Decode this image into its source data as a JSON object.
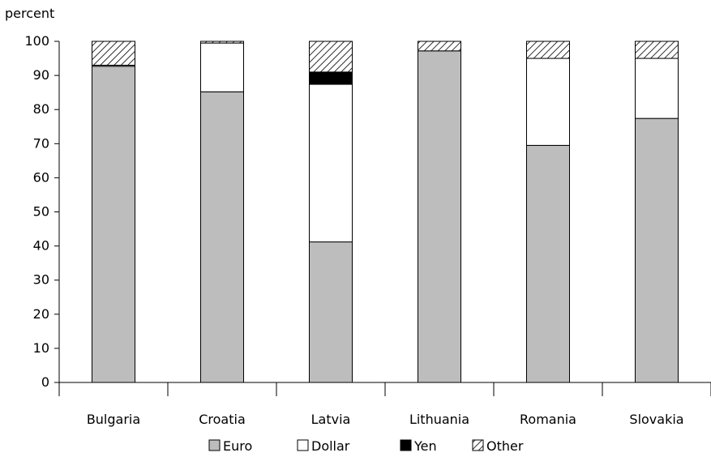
{
  "chart_data": {
    "type": "bar",
    "stacked": true,
    "title": "",
    "ylabel": "percent",
    "xlabel": "",
    "ylim": [
      0,
      100
    ],
    "yticks": [
      0,
      10,
      20,
      30,
      40,
      50,
      60,
      70,
      80,
      90,
      100
    ],
    "categories": [
      "Bulgaria",
      "Croatia",
      "Latvia",
      "Lithuania",
      "Romania",
      "Slovakia"
    ],
    "series": [
      {
        "name": "Euro",
        "values": [
          92.7,
          85.2,
          41.2,
          97.2,
          69.5,
          77.4
        ],
        "color": "#bdbdbd",
        "pattern": "solid"
      },
      {
        "name": "Dollar",
        "values": [
          0.3,
          14.3,
          46.2,
          0.0,
          25.5,
          17.6
        ],
        "color": "#ffffff",
        "pattern": "solid"
      },
      {
        "name": "Yen",
        "values": [
          0.0,
          0.0,
          3.6,
          0.0,
          0.0,
          0.0
        ],
        "color": "#000000",
        "pattern": "solid"
      },
      {
        "name": "Other",
        "values": [
          7.0,
          0.5,
          9.0,
          2.8,
          5.0,
          5.0
        ],
        "color": "#ffffff",
        "pattern": "hatch"
      }
    ],
    "legend_position": "bottom",
    "grid": false
  }
}
